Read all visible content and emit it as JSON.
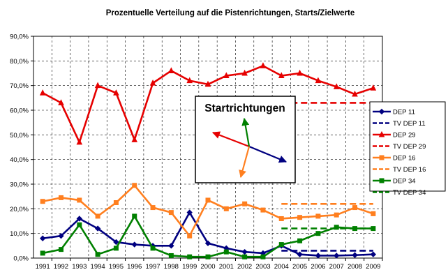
{
  "chart_data": {
    "type": "line",
    "title": "Prozentuelle Verteilung auf die Pistenrichtungen, Starts/Zielwerte",
    "xlabel": "",
    "ylabel": "",
    "categories": [
      "1991",
      "1992",
      "1993",
      "1994",
      "1995",
      "1996",
      "1997",
      "1998",
      "1999",
      "2000",
      "2001",
      "2002",
      "2003",
      "2004",
      "2005",
      "2006",
      "2007",
      "2008",
      "2009"
    ],
    "ylim": [
      0,
      90
    ],
    "yticks": [
      "0,0%",
      "10,0%",
      "20,0%",
      "30,0%",
      "40,0%",
      "50,0%",
      "60,0%",
      "70,0%",
      "80,0%",
      "90,0%"
    ],
    "grid": "dashed",
    "legend_position": "right",
    "series": [
      {
        "name": "DEP 11",
        "color": "#000080",
        "style": "solid",
        "marker": "diamond",
        "values": [
          8,
          9,
          16,
          12,
          6.5,
          5.5,
          5,
          5,
          18.5,
          6,
          4,
          2.5,
          2,
          5,
          1.5,
          1,
          1,
          1.2,
          1.5
        ]
      },
      {
        "name": "TV DEP 11",
        "color": "#000080",
        "style": "dashed",
        "x_range": [
          "2004",
          "2009"
        ],
        "value": 3
      },
      {
        "name": "DEP 29",
        "color": "#e60000",
        "style": "solid",
        "marker": "triangle",
        "values": [
          67,
          63,
          47,
          70,
          67,
          48,
          71,
          76,
          72,
          70.5,
          74,
          75,
          78,
          74,
          75,
          72,
          69.5,
          66.5,
          69
        ]
      },
      {
        "name": "TV DEP 29",
        "color": "#e60000",
        "style": "dashed",
        "x_range": [
          "2004",
          "2009"
        ],
        "value": 63
      },
      {
        "name": "DEP 16",
        "color": "#ff7f1f",
        "style": "solid",
        "marker": "square",
        "values": [
          23,
          24.5,
          23.5,
          17,
          22.5,
          29.5,
          20.5,
          18.5,
          9,
          23.5,
          20,
          22,
          19.5,
          16,
          16.5,
          17,
          17.5,
          20.5,
          18
        ]
      },
      {
        "name": "TV DEP 16",
        "color": "#ff7f1f",
        "style": "dashed",
        "x_range": [
          "2004",
          "2009"
        ],
        "value": 22
      },
      {
        "name": "DEP 34",
        "color": "#008000",
        "style": "solid",
        "marker": "square",
        "values": [
          2,
          3.5,
          13.5,
          1.5,
          4,
          17,
          4,
          1,
          0.5,
          0.5,
          2.5,
          0.5,
          0.5,
          5.5,
          7,
          10,
          12.5,
          12,
          12
        ]
      },
      {
        "name": "TV DEP 34",
        "color": "#008000",
        "style": "dashed",
        "x_range": [
          "2004",
          "2009"
        ],
        "value": 12
      }
    ],
    "annotation": {
      "title": "Startrichtungen",
      "arrows": [
        {
          "color": "#000080",
          "direction": "east-southeast"
        },
        {
          "color": "#e60000",
          "direction": "west-northwest"
        },
        {
          "color": "#ff7f1f",
          "direction": "south-southwest"
        },
        {
          "color": "#008000",
          "direction": "north-northeast"
        }
      ]
    }
  }
}
